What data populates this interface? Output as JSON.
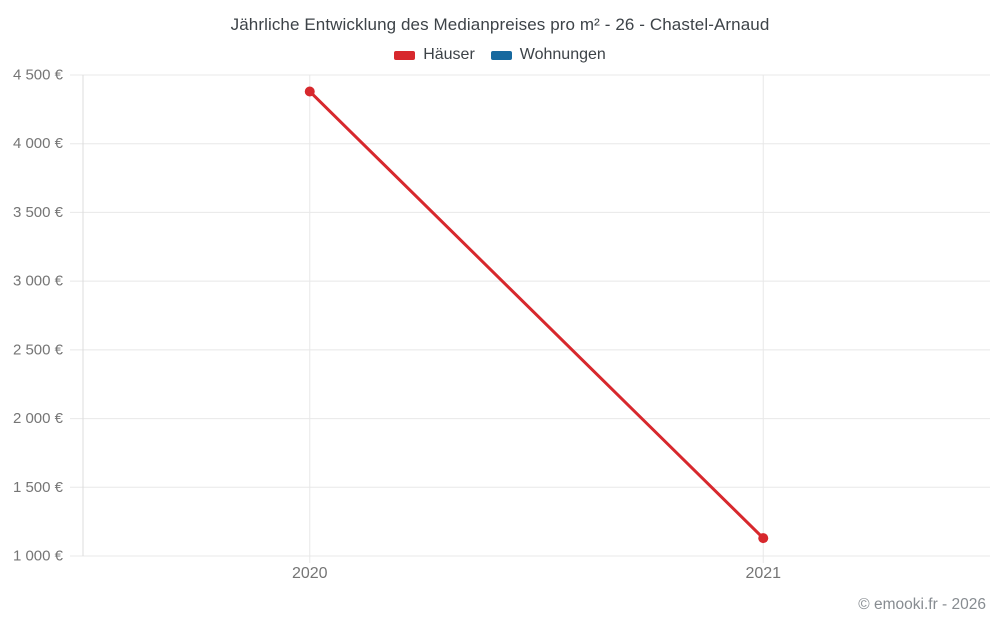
{
  "title": "Jährliche Entwicklung des Medianpreises pro m² - 26 - Chastel-Arnaud",
  "footer": "© emooki.fr - 2026",
  "legend": [
    {
      "label": "Häuser",
      "color": "#d7282d"
    },
    {
      "label": "Wohnungen",
      "color": "#17699f"
    }
  ],
  "colors": {
    "haeuser_red": "#d7282d",
    "wohnungen_blue": "#17699f",
    "gridline": "#e8e8e8",
    "axis_line": "#dcdcdc",
    "title_text": "#3d4348",
    "tick_text": "#757575",
    "footer_text": "#878c91"
  },
  "chart_data": {
    "type": "line",
    "title": "Jährliche Entwicklung des Medianpreises pro m² - 26 - Chastel-Arnaud",
    "categories": [
      "2020",
      "2021"
    ],
    "series": [
      {
        "name": "Häuser",
        "color": "#d7282d",
        "values": [
          4380,
          1130
        ]
      },
      {
        "name": "Wohnungen",
        "color": "#17699f",
        "values": []
      }
    ],
    "xlabel": "",
    "ylabel": "",
    "ylim": [
      1000,
      4500
    ],
    "ytick_step": 500,
    "yticks": [
      1000,
      1500,
      2000,
      2500,
      3000,
      3500,
      4000,
      4500
    ],
    "ytick_labels": [
      "1 000 €",
      "1 500 €",
      "2 000 €",
      "2 500 €",
      "3 000 €",
      "3 500 €",
      "4 000 €",
      "4 500 €"
    ],
    "grid": true,
    "legend_position": "top",
    "point_radius": 5,
    "line_width": 3
  }
}
